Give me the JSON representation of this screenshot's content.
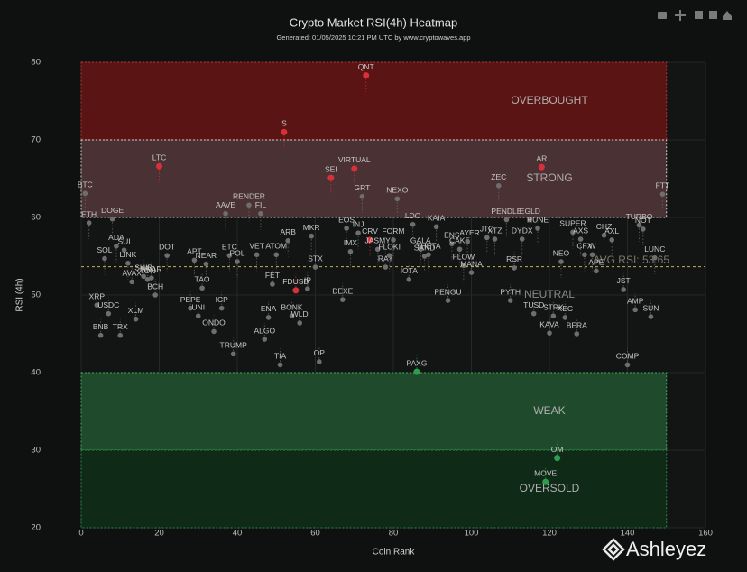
{
  "chart_data": {
    "type": "scatter",
    "title": "Crypto Market RSI(4h) Heatmap",
    "subtitle": "Generated: 01/05/2025 10:21 PM UTC by www.cryptowaves.app",
    "x_label": "Coin Rank",
    "y_label": "RSI (4h)",
    "xlim": [
      0,
      160
    ],
    "ylim": [
      20,
      80
    ],
    "xticks": [
      0,
      20,
      40,
      60,
      80,
      100,
      120,
      140,
      160
    ],
    "yticks": [
      20,
      30,
      40,
      50,
      60,
      70,
      80
    ],
    "grid": true,
    "zones": [
      {
        "label": "OVERBOUGHT",
        "range": [
          70,
          80
        ],
        "color": "#5a1414",
        "edge": "#c03030"
      },
      {
        "label": "STRONG",
        "range": [
          60,
          70
        ],
        "color": "#4a3133",
        "edge": "#d0d0d0"
      },
      {
        "label": "WEAK",
        "range": [
          30,
          40
        ],
        "color": "#1f4a2c",
        "edge": "#3fae5a"
      },
      {
        "label": "OVERSOLD",
        "range": [
          20,
          30
        ],
        "color": "#102a18",
        "edge": "#2a8a40"
      }
    ],
    "zone_xlim": [
      0,
      150
    ],
    "neutral_label": "NEUTRAL",
    "avg_value": 53.65,
    "avg_label": "AVG RSI: 53.65",
    "avg_color": "#c9b458",
    "labels": [
      "BTC",
      "ETH",
      "XRP",
      "BNB",
      "SOL",
      "USDC",
      "DOGE",
      "ADA",
      "TRX",
      "SUI",
      "LINK",
      "AVAX",
      "XLM",
      "SHIB",
      "TON",
      "HBAR",
      "BCH",
      "LTC",
      "DOT",
      "PEPE",
      "APT",
      "UNI",
      "TAO",
      "NEAR",
      "ONDO",
      "ICP",
      "AAVE",
      "ETC",
      "TRUMP",
      "POL",
      "RENDER",
      "VET",
      "FIL",
      "ALGO",
      "ENA",
      "FET",
      "ATOM",
      "TIA",
      "S",
      "ARB",
      "BONK",
      "FDUSD",
      "WLD",
      "IP",
      "MKR",
      "STX",
      "OP",
      "SEI",
      "DEXE",
      "EOS",
      "IMX",
      "VIRTUAL",
      "INJ",
      "GRT",
      "QNT",
      "CRV",
      "JASMY",
      "RAY",
      "FLOKI",
      "FORM",
      "NEXO",
      "IOTA",
      "LDO",
      "PAXG",
      "GALA",
      "SAND",
      "THETA",
      "KAIA",
      "PENGU",
      "ENS",
      "CAKE",
      "FLOW",
      "LAYER",
      "MANA",
      "JTO",
      "XTZ",
      "ZEC",
      "PENDLE",
      "PYTH",
      "RSR",
      "DYDX",
      "EGLD",
      "TUSD",
      "RUNE",
      "AR",
      "MOVE",
      "KAVA",
      "STRK",
      "OM",
      "NEO",
      "XEC",
      "SUPER",
      "BERA",
      "AXS",
      "CFX",
      "W",
      "APE",
      "CHZ",
      "AXL",
      "JST",
      "COMP",
      "AMP",
      "TURBO",
      "NOT",
      "SUN",
      "LUNC",
      "FTT"
    ],
    "x": [
      1,
      2,
      4,
      5,
      6,
      7,
      8,
      9,
      10,
      11,
      12,
      13,
      14,
      16,
      17,
      18,
      19,
      20,
      22,
      28,
      29,
      30,
      31,
      32,
      34,
      36,
      37,
      38,
      39,
      40,
      43,
      45,
      46,
      47,
      48,
      49,
      50,
      51,
      52,
      53,
      54,
      55,
      56,
      58,
      59,
      60,
      61,
      64,
      67,
      68,
      69,
      70,
      71,
      72,
      73,
      74,
      76,
      78,
      79,
      80,
      81,
      84,
      85,
      86,
      87,
      88,
      89,
      91,
      94,
      95,
      97,
      98,
      99,
      100,
      104,
      106,
      107,
      109,
      110,
      111,
      113,
      115,
      116,
      117,
      118,
      119,
      120,
      121,
      122,
      123,
      124,
      126,
      127,
      128,
      129,
      131,
      132,
      134,
      136,
      139,
      140,
      142,
      143,
      144,
      146,
      147,
      149
    ],
    "y": [
      63.1,
      59.3,
      48.7,
      44.8,
      54.7,
      47.6,
      59.8,
      56.3,
      44.8,
      55.8,
      54.1,
      51.7,
      46.9,
      52.4,
      52.0,
      52.2,
      50.0,
      66.6,
      55.1,
      48.3,
      54.5,
      47.3,
      50.9,
      54.0,
      45.3,
      48.3,
      60.5,
      55.1,
      42.4,
      54.3,
      61.6,
      55.2,
      60.5,
      44.3,
      47.1,
      51.4,
      55.2,
      41.0,
      71.0,
      57.0,
      47.3,
      50.6,
      46.4,
      50.8,
      57.6,
      53.6,
      41.4,
      65.1,
      49.4,
      58.6,
      55.6,
      66.3,
      58.0,
      62.7,
      78.3,
      57.1,
      55.9,
      53.6,
      55.1,
      57.1,
      62.4,
      52.0,
      59.1,
      40.1,
      55.9,
      55.0,
      55.2,
      58.8,
      49.3,
      56.6,
      55.9,
      53.8,
      56.9,
      52.9,
      57.4,
      57.2,
      64.1,
      59.7,
      49.3,
      53.5,
      57.2,
      59.7,
      47.6,
      58.6,
      66.5,
      25.9,
      45.1,
      47.3,
      29.0,
      54.3,
      47.1,
      58.1,
      45.0,
      57.2,
      55.2,
      55.2,
      53.1,
      57.7,
      57.1,
      50.7,
      41.0,
      48.1,
      59.0,
      58.5,
      47.2,
      54.8,
      63.0
    ],
    "point_colors": {
      "high": "#d8303a",
      "low": "#2e9d4c",
      "normal": "#6e6e6e"
    },
    "high_above": 65,
    "low_below": 41,
    "red_extra": [
      "FDUSD",
      "CRV"
    ]
  },
  "watermark": "Ashleyez"
}
